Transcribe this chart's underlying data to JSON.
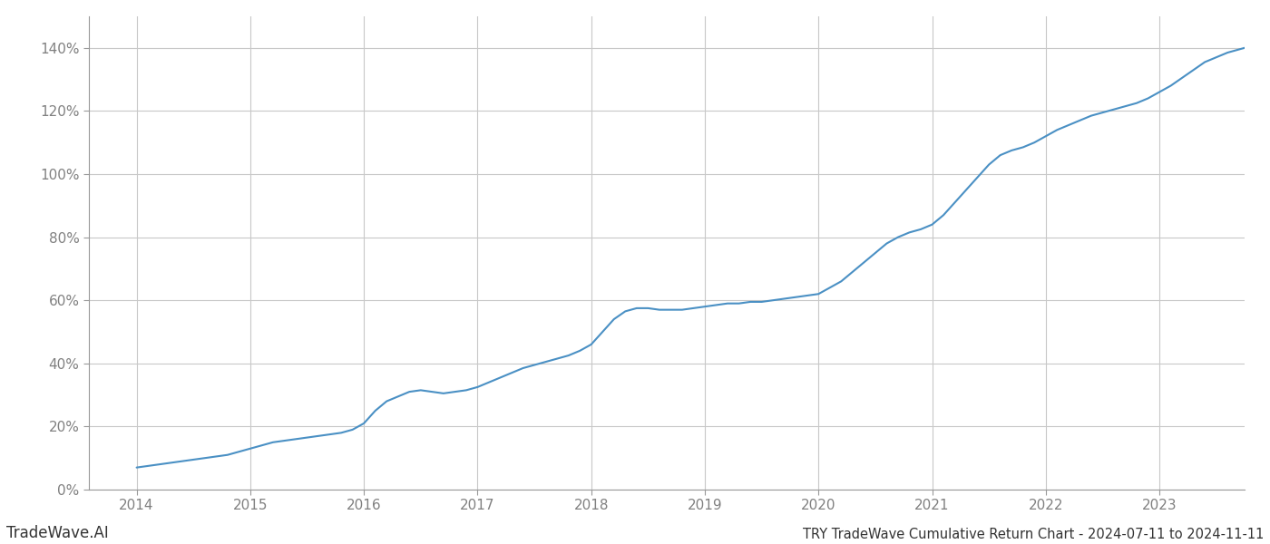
{
  "title": "TRY TradeWave Cumulative Return Chart - 2024-07-11 to 2024-11-11",
  "watermark": "TradeWave.AI",
  "line_color": "#4a90c4",
  "background_color": "#ffffff",
  "grid_color": "#c8c8c8",
  "x_years": [
    2014,
    2015,
    2016,
    2017,
    2018,
    2019,
    2020,
    2021,
    2022,
    2023
  ],
  "data_points_x": [
    2014.0,
    2014.1,
    2014.2,
    2014.3,
    2014.4,
    2014.5,
    2014.6,
    2014.7,
    2014.8,
    2014.9,
    2015.0,
    2015.1,
    2015.2,
    2015.3,
    2015.4,
    2015.5,
    2015.6,
    2015.7,
    2015.8,
    2015.9,
    2016.0,
    2016.1,
    2016.2,
    2016.3,
    2016.4,
    2016.5,
    2016.6,
    2016.7,
    2016.8,
    2016.9,
    2017.0,
    2017.1,
    2017.2,
    2017.3,
    2017.4,
    2017.5,
    2017.6,
    2017.7,
    2017.8,
    2017.9,
    2018.0,
    2018.1,
    2018.2,
    2018.3,
    2018.4,
    2018.5,
    2018.6,
    2018.7,
    2018.8,
    2018.9,
    2019.0,
    2019.1,
    2019.2,
    2019.3,
    2019.4,
    2019.5,
    2019.6,
    2019.7,
    2019.8,
    2019.9,
    2020.0,
    2020.1,
    2020.2,
    2020.3,
    2020.4,
    2020.5,
    2020.6,
    2020.7,
    2020.8,
    2020.9,
    2021.0,
    2021.1,
    2021.2,
    2021.3,
    2021.4,
    2021.5,
    2021.6,
    2021.7,
    2021.8,
    2021.9,
    2022.0,
    2022.1,
    2022.2,
    2022.3,
    2022.4,
    2022.5,
    2022.6,
    2022.7,
    2022.8,
    2022.9,
    2023.0,
    2023.1,
    2023.2,
    2023.3,
    2023.4,
    2023.5,
    2023.6,
    2023.7,
    2023.8,
    2023.9,
    2024.0
  ],
  "data_points_y": [
    7.0,
    7.5,
    8.0,
    8.5,
    9.0,
    9.5,
    10.0,
    10.5,
    11.0,
    12.0,
    13.0,
    14.0,
    15.0,
    15.5,
    16.0,
    16.5,
    17.0,
    17.5,
    18.0,
    19.0,
    21.0,
    25.0,
    28.0,
    29.5,
    31.0,
    31.5,
    31.0,
    30.5,
    31.0,
    31.5,
    32.5,
    34.0,
    35.5,
    37.0,
    38.5,
    39.5,
    40.5,
    41.5,
    42.5,
    44.0,
    46.0,
    50.0,
    54.0,
    56.5,
    57.5,
    57.5,
    57.0,
    57.0,
    57.0,
    57.5,
    58.0,
    58.5,
    59.0,
    59.0,
    59.5,
    59.5,
    60.0,
    60.5,
    61.0,
    61.5,
    62.0,
    64.0,
    66.0,
    69.0,
    72.0,
    75.0,
    78.0,
    80.0,
    81.5,
    82.5,
    84.0,
    87.0,
    91.0,
    95.0,
    99.0,
    103.0,
    106.0,
    107.5,
    108.5,
    110.0,
    112.0,
    114.0,
    115.5,
    117.0,
    118.5,
    119.5,
    120.5,
    121.5,
    122.5,
    124.0,
    126.0,
    128.0,
    130.5,
    133.0,
    135.5,
    137.0,
    138.5,
    139.5,
    140.5,
    141.0,
    141.5
  ],
  "ylim": [
    0,
    150
  ],
  "yticks": [
    0,
    20,
    40,
    60,
    80,
    100,
    120,
    140
  ],
  "xlim": [
    2013.58,
    2023.75
  ],
  "text_color": "#808080",
  "spine_color": "#999999",
  "title_fontsize": 10.5,
  "tick_fontsize": 11,
  "watermark_fontsize": 12
}
